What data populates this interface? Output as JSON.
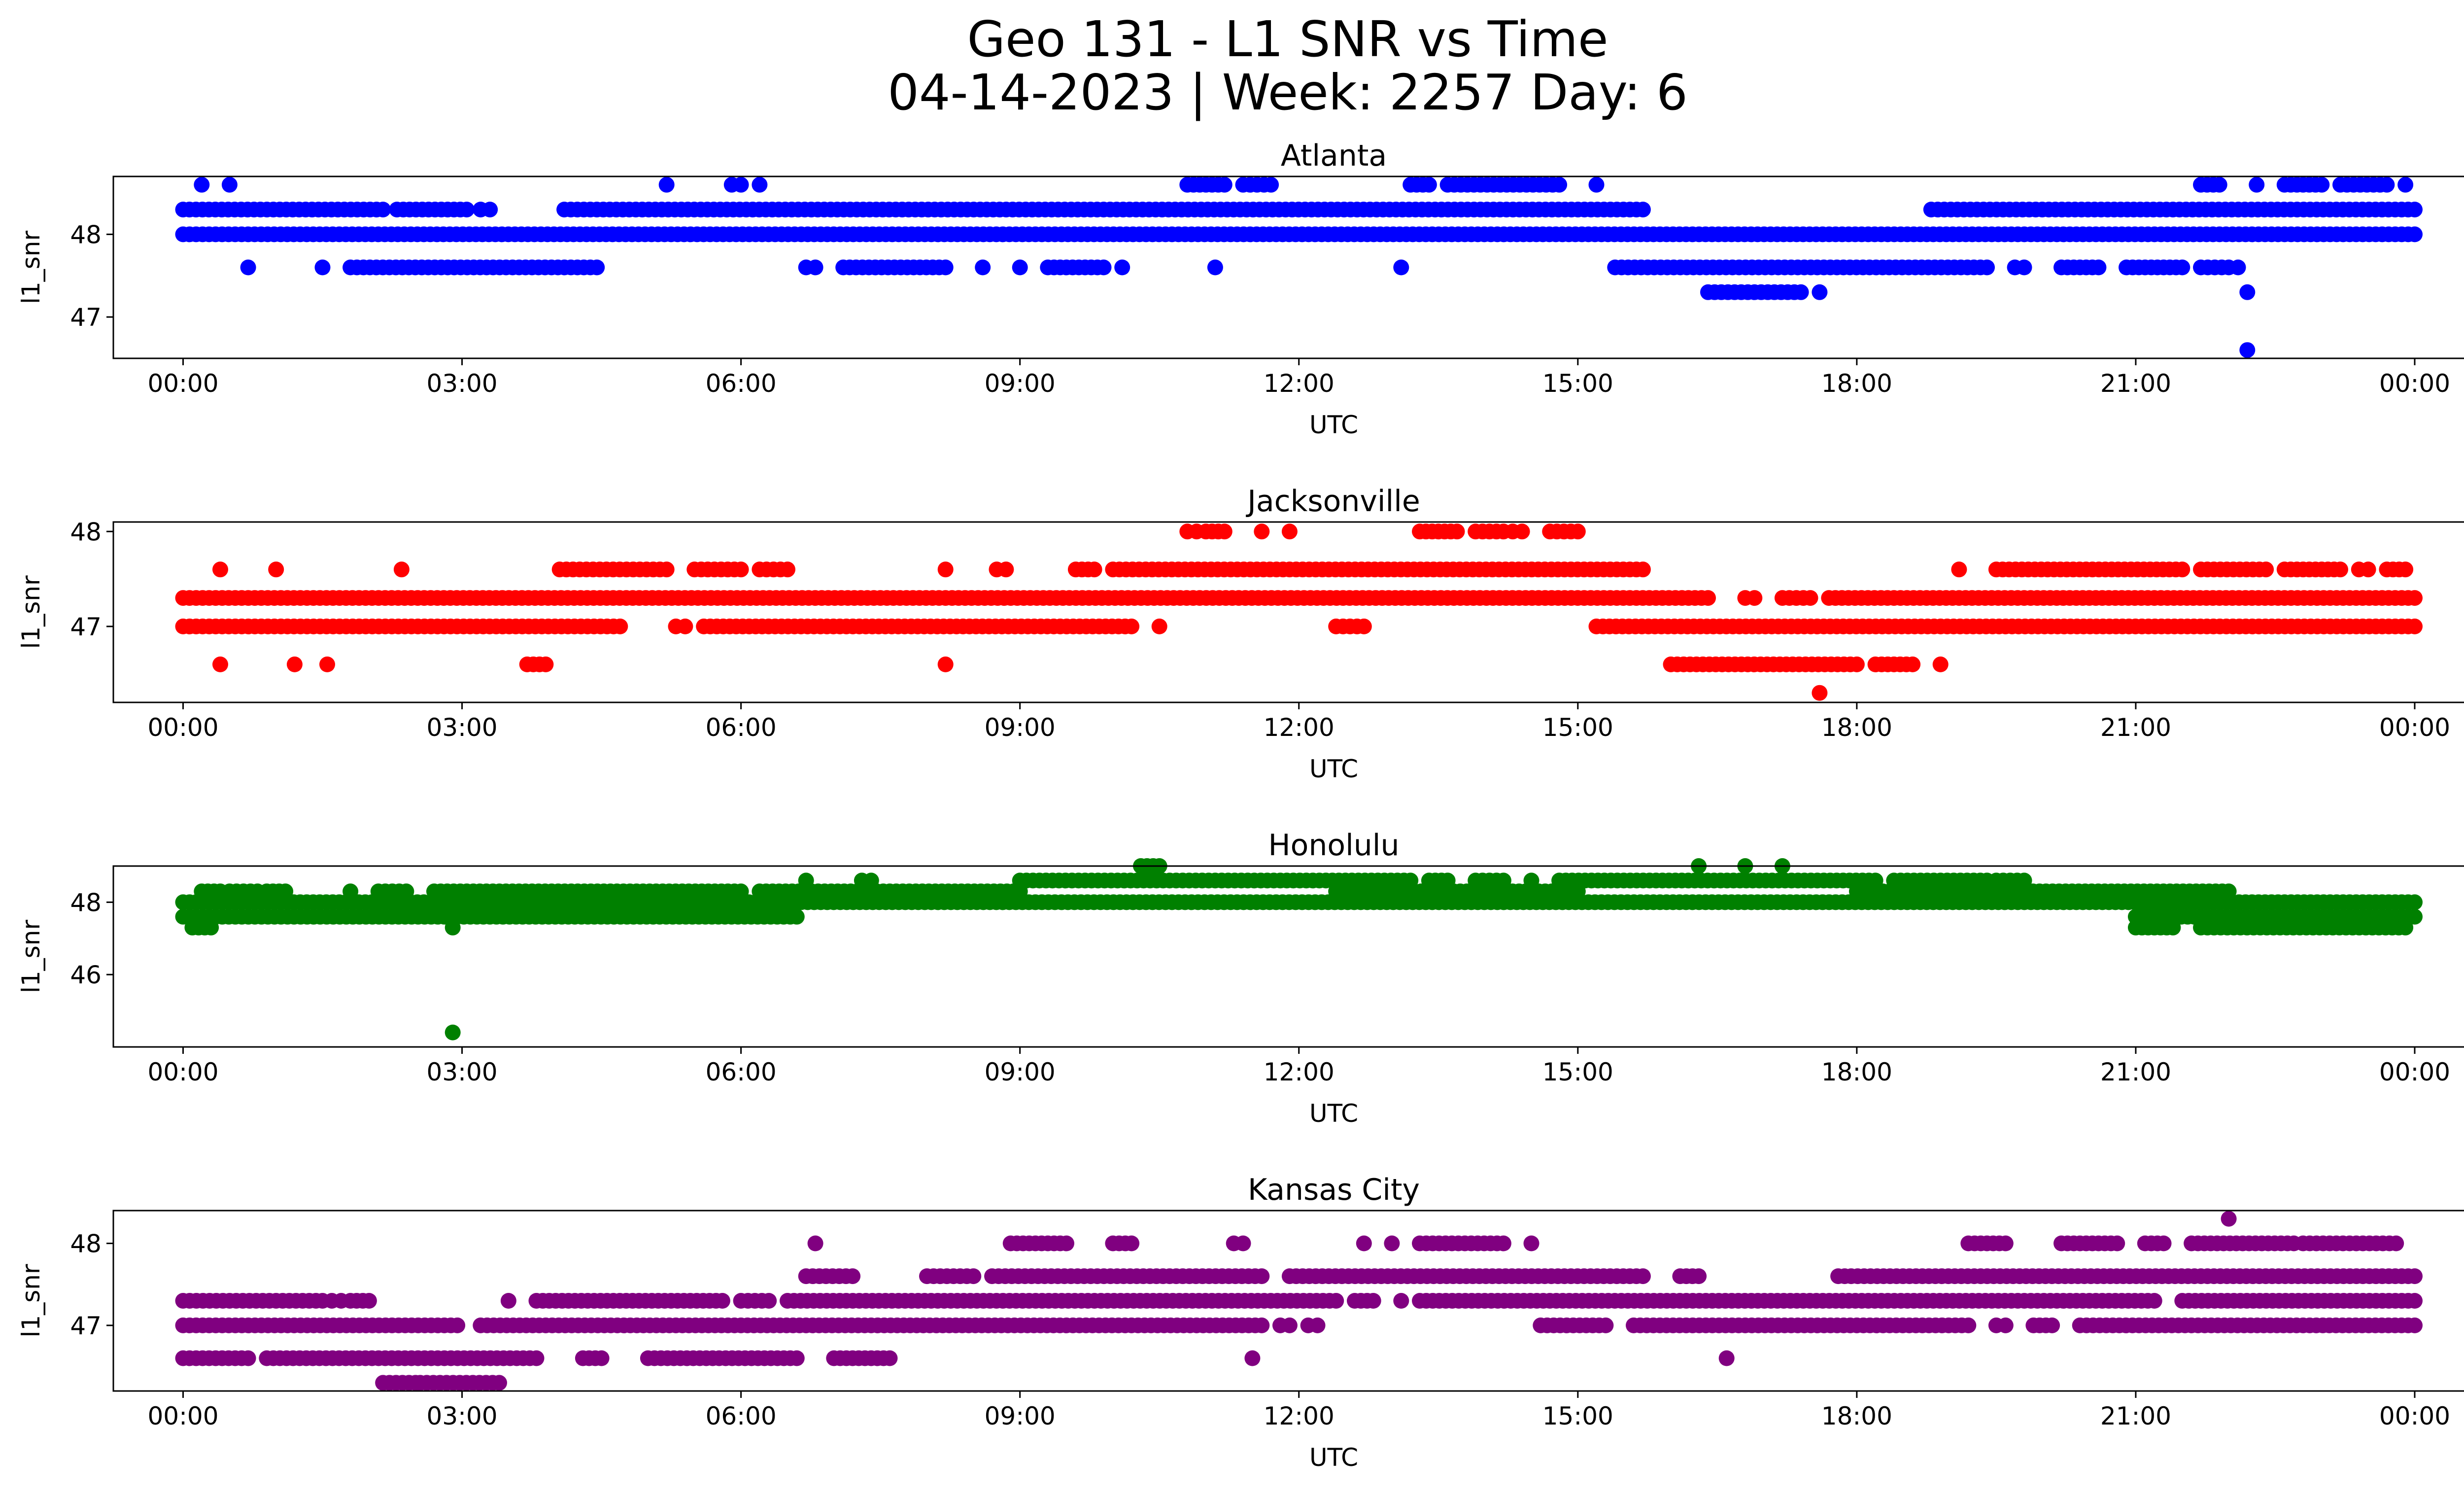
{
  "title_line1": "Geo 131 - L1 SNR vs Time",
  "title_line2": "04-14-2023 | Week: 2257 Day: 6",
  "chart_data": [
    {
      "type": "scatter",
      "title": "Atlanta",
      "xlabel": "UTC",
      "ylabel": "l1_snr",
      "color": "#0000ff",
      "ylim": [
        46.5,
        48.7
      ],
      "yticks": [
        47,
        48
      ],
      "xlim": [
        -0.75,
        25.5
      ],
      "xticks": [
        0,
        3,
        6,
        9,
        12,
        15,
        18,
        21,
        24
      ],
      "xtick_labels": [
        "00:00",
        "03:00",
        "06:00",
        "09:00",
        "12:00",
        "15:00",
        "18:00",
        "21:00",
        "00:00"
      ],
      "levels": [
        {
          "y": 48.0,
          "segments": [
            [
              0,
              24
            ]
          ]
        },
        {
          "y": 48.3,
          "segments": [
            [
              0,
              2.15
            ],
            [
              2.3,
              3.05
            ],
            [
              3.2,
              3.3
            ],
            [
              4.1,
              15.7
            ],
            [
              18.8,
              24
            ]
          ]
        },
        {
          "y": 47.6,
          "segments": [
            [
              0.7,
              0.7
            ],
            [
              1.5,
              1.5
            ],
            [
              1.8,
              4.45
            ],
            [
              6.7,
              6.8
            ],
            [
              7.1,
              8.2
            ],
            [
              8.6,
              8.6
            ],
            [
              9.0,
              9.0
            ],
            [
              9.3,
              9.9
            ],
            [
              10.1,
              10.1
            ],
            [
              11.1,
              11.1
            ],
            [
              13.1,
              13.1
            ],
            [
              15.4,
              19.4
            ],
            [
              19.7,
              19.8
            ],
            [
              20.2,
              20.6
            ],
            [
              20.9,
              21.5
            ],
            [
              21.7,
              22.0
            ],
            [
              22.1,
              22.1
            ]
          ]
        },
        {
          "y": 48.6,
          "segments": [
            [
              0.2,
              0.2
            ],
            [
              0.5,
              0.5
            ],
            [
              5.2,
              5.2
            ],
            [
              5.9,
              6.0
            ],
            [
              6.2,
              6.2
            ],
            [
              10.8,
              11.2
            ],
            [
              11.4,
              11.7
            ],
            [
              13.2,
              13.4
            ],
            [
              13.6,
              14.8
            ],
            [
              15.2,
              15.2
            ],
            [
              21.7,
              21.9
            ],
            [
              22.3,
              22.3
            ],
            [
              22.6,
              23.0
            ],
            [
              23.2,
              23.7
            ],
            [
              23.9,
              23.9
            ]
          ]
        },
        {
          "y": 47.3,
          "segments": [
            [
              16.4,
              17.4
            ],
            [
              17.6,
              17.6
            ],
            [
              22.2,
              22.2
            ]
          ]
        },
        {
          "y": 46.6,
          "segments": [
            [
              22.2,
              22.2
            ]
          ]
        }
      ]
    },
    {
      "type": "scatter",
      "title": "Jacksonville",
      "xlabel": "UTC",
      "ylabel": "l1_snr",
      "color": "#ff0000",
      "ylim": [
        46.2,
        48.1
      ],
      "yticks": [
        47,
        48
      ],
      "xlim": [
        -0.75,
        25.5
      ],
      "xticks": [
        0,
        3,
        6,
        9,
        12,
        15,
        18,
        21,
        24
      ],
      "xtick_labels": [
        "00:00",
        "03:00",
        "06:00",
        "09:00",
        "12:00",
        "15:00",
        "18:00",
        "21:00",
        "00:00"
      ],
      "levels": [
        {
          "y": 47.3,
          "segments": [
            [
              0,
              16.4
            ],
            [
              16.8,
              16.9
            ],
            [
              17.2,
              17.5
            ],
            [
              17.7,
              24
            ]
          ]
        },
        {
          "y": 47.0,
          "segments": [
            [
              0,
              4.7
            ],
            [
              5.3,
              5.4
            ],
            [
              5.6,
              10.2
            ],
            [
              10.5,
              10.5
            ],
            [
              12.4,
              12.7
            ],
            [
              15.2,
              24
            ]
          ]
        },
        {
          "y": 47.6,
          "segments": [
            [
              0.4,
              0.4
            ],
            [
              1.0,
              1.0
            ],
            [
              2.35,
              2.35
            ],
            [
              4.05,
              5.2
            ],
            [
              5.5,
              6.0
            ],
            [
              6.2,
              6.5
            ],
            [
              8.2,
              8.2
            ],
            [
              8.75,
              8.85
            ],
            [
              9.6,
              9.8
            ],
            [
              10.0,
              15.7
            ],
            [
              19.1,
              19.1
            ],
            [
              19.5,
              21.5
            ],
            [
              21.7,
              22.4
            ],
            [
              22.6,
              23.2
            ],
            [
              23.4,
              23.5
            ],
            [
              23.7,
              23.9
            ]
          ]
        },
        {
          "y": 48.0,
          "segments": [
            [
              10.8,
              10.9
            ],
            [
              11.0,
              11.2
            ],
            [
              11.6,
              11.6
            ],
            [
              11.9,
              11.9
            ],
            [
              13.3,
              13.7
            ],
            [
              13.9,
              14.2
            ],
            [
              14.3,
              14.4
            ],
            [
              14.7,
              15.0
            ]
          ]
        },
        {
          "y": 46.6,
          "segments": [
            [
              0.4,
              0.4
            ],
            [
              1.2,
              1.2
            ],
            [
              1.55,
              1.55
            ],
            [
              3.7,
              3.9
            ],
            [
              8.2,
              8.2
            ],
            [
              16.0,
              18.0
            ],
            [
              18.2,
              18.6
            ],
            [
              18.9,
              18.9
            ]
          ]
        },
        {
          "y": 46.3,
          "segments": [
            [
              17.6,
              17.6
            ]
          ]
        }
      ]
    },
    {
      "type": "scatter",
      "title": "Honolulu",
      "xlabel": "UTC",
      "ylabel": "l1_snr",
      "color": "#008000",
      "ylim": [
        44.0,
        49.0
      ],
      "yticks": [
        46,
        48
      ],
      "xlim": [
        -0.75,
        25.5
      ],
      "xticks": [
        0,
        3,
        6,
        9,
        12,
        15,
        18,
        21,
        24
      ],
      "xtick_labels": [
        "00:00",
        "03:00",
        "06:00",
        "09:00",
        "12:00",
        "15:00",
        "18:00",
        "21:00",
        "00:00"
      ],
      "levels": [
        {
          "y": 48.0,
          "segments": [
            [
              0,
              24
            ]
          ]
        },
        {
          "y": 47.6,
          "segments": [
            [
              0,
              6.6
            ],
            [
              21.0,
              24
            ]
          ]
        },
        {
          "y": 48.3,
          "segments": [
            [
              0.2,
              0.4
            ],
            [
              0.5,
              0.8
            ],
            [
              0.9,
              1.1
            ],
            [
              1.8,
              1.8
            ],
            [
              2.1,
              2.4
            ],
            [
              2.7,
              6.0
            ],
            [
              6.2,
              9.0
            ],
            [
              12.4,
              15.0
            ],
            [
              18.0,
              22.0
            ]
          ]
        },
        {
          "y": 48.6,
          "segments": [
            [
              6.7,
              6.7
            ],
            [
              7.3,
              7.4
            ],
            [
              9.0,
              13.2
            ],
            [
              13.4,
              13.6
            ],
            [
              13.9,
              14.2
            ],
            [
              14.5,
              14.5
            ],
            [
              14.8,
              18.2
            ],
            [
              18.4,
              19.4
            ],
            [
              19.5,
              19.8
            ]
          ]
        },
        {
          "y": 49.0,
          "segments": [
            [
              10.3,
              10.5
            ],
            [
              16.3,
              16.3
            ],
            [
              16.8,
              16.8
            ],
            [
              17.2,
              17.2
            ]
          ]
        },
        {
          "y": 47.3,
          "segments": [
            [
              0.1,
              0.3
            ],
            [
              2.9,
              2.9
            ],
            [
              21.0,
              21.4
            ],
            [
              21.7,
              23.9
            ]
          ]
        },
        {
          "y": 44.4,
          "segments": [
            [
              2.9,
              2.9
            ]
          ]
        }
      ]
    },
    {
      "type": "scatter",
      "title": "Kansas City",
      "xlabel": "UTC",
      "ylabel": "l1_snr",
      "color": "#800080",
      "ylim": [
        46.2,
        48.4
      ],
      "yticks": [
        47,
        48
      ],
      "xlim": [
        -0.75,
        25.5
      ],
      "xticks": [
        0,
        3,
        6,
        9,
        12,
        15,
        18,
        21,
        24
      ],
      "xtick_labels": [
        "00:00",
        "03:00",
        "06:00",
        "09:00",
        "12:00",
        "15:00",
        "18:00",
        "21:00",
        "00:00"
      ],
      "levels": [
        {
          "y": 47.3,
          "segments": [
            [
              0,
              1.5
            ],
            [
              1.6,
              1.7
            ],
            [
              1.8,
              2.0
            ],
            [
              3.5,
              3.5
            ],
            [
              3.8,
              5.8
            ],
            [
              6.0,
              6.3
            ],
            [
              6.5,
              12.4
            ],
            [
              12.6,
              12.8
            ],
            [
              13.1,
              13.1
            ],
            [
              13.3,
              21.2
            ],
            [
              21.5,
              24
            ]
          ]
        },
        {
          "y": 47.0,
          "segments": [
            [
              0,
              2.95
            ],
            [
              3.2,
              11.6
            ],
            [
              11.8,
              11.9
            ],
            [
              12.1,
              12.2
            ],
            [
              14.6,
              15.3
            ],
            [
              15.6,
              19.2
            ],
            [
              19.5,
              19.6
            ],
            [
              19.9,
              20.1
            ],
            [
              20.4,
              24
            ]
          ]
        },
        {
          "y": 47.6,
          "segments": [
            [
              6.7,
              7.2
            ],
            [
              8.0,
              8.5
            ],
            [
              8.7,
              11.6
            ],
            [
              11.9,
              15.7
            ],
            [
              16.1,
              16.3
            ],
            [
              17.8,
              24
            ]
          ]
        },
        {
          "y": 48.0,
          "segments": [
            [
              6.8,
              6.8
            ],
            [
              8.9,
              9.5
            ],
            [
              10.0,
              10.2
            ],
            [
              11.3,
              11.4
            ],
            [
              12.7,
              12.7
            ],
            [
              13.0,
              13.0
            ],
            [
              13.3,
              14.2
            ],
            [
              14.5,
              14.5
            ],
            [
              19.2,
              19.6
            ],
            [
              20.2,
              20.8
            ],
            [
              21.1,
              21.3
            ],
            [
              21.6,
              22.7
            ],
            [
              22.8,
              23.8
            ]
          ]
        },
        {
          "y": 46.6,
          "segments": [
            [
              0,
              0.7
            ],
            [
              0.9,
              3.8
            ],
            [
              4.3,
              4.5
            ],
            [
              5.0,
              6.6
            ],
            [
              7.0,
              7.6
            ],
            [
              11.5,
              11.5
            ],
            [
              16.6,
              16.6
            ]
          ]
        },
        {
          "y": 46.3,
          "segments": [
            [
              2.15,
              2.5
            ],
            [
              2.55,
              3.4
            ]
          ]
        },
        {
          "y": 48.3,
          "segments": [
            [
              22.0,
              22.0
            ]
          ]
        }
      ]
    }
  ]
}
